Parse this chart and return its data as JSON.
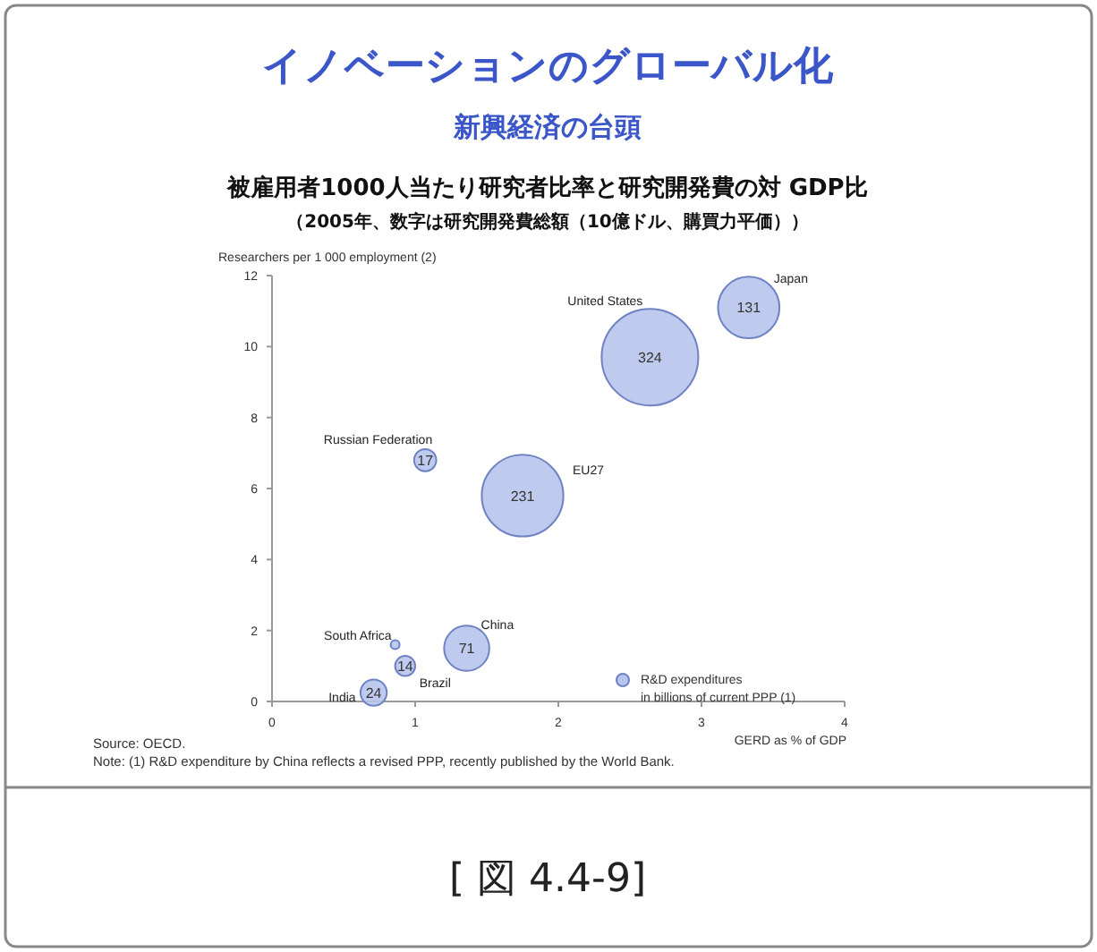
{
  "chart_data": {
    "type": "bubble",
    "title": "被雇用者1000人当たり研究者比率と研究開発費の対 GDP比",
    "subtitle": "（2005年、数字は研究開発費総額（10億ドル、購買力平価））",
    "xlabel": "GERD as % of GDP",
    "ylabel": "Researchers per 1 000 employment (2)",
    "xlim": [
      0,
      4
    ],
    "xticks": [
      0,
      1,
      2,
      3,
      4
    ],
    "ylim": [
      0,
      12
    ],
    "yticks": [
      0,
      2,
      4,
      6,
      8,
      10,
      12
    ],
    "series": [
      {
        "name": "R&D expenditures in billions of current PPP (1)",
        "color": "#b7c5ec",
        "x": [
          3.33,
          2.64,
          1.07,
          1.75,
          1.36,
          0.86,
          0.93,
          0.71
        ],
        "values": [
          11.1,
          9.7,
          6.8,
          5.8,
          1.5,
          1.6,
          1.0,
          0.25
        ],
        "sizes": [
          131,
          324,
          17,
          231,
          71,
          null,
          14,
          24
        ],
        "value_labels": [
          "131",
          "324",
          "17",
          "231",
          "71",
          null,
          "14",
          "24"
        ]
      }
    ],
    "legend": "bottom right",
    "grid": false,
    "annotations": [
      "Japan",
      "United States",
      "Russian Federation",
      "EU27",
      "China",
      "South Africa",
      "Brazil",
      "India",
      "イノベーションのグローバル化",
      "新興経済の台頭",
      "Source: OECD.",
      "Note: (1) R&D expenditure by China reflects a revised PPP, recently published by the World Bank.",
      "[ 図 4.4-9]"
    ]
  }
}
